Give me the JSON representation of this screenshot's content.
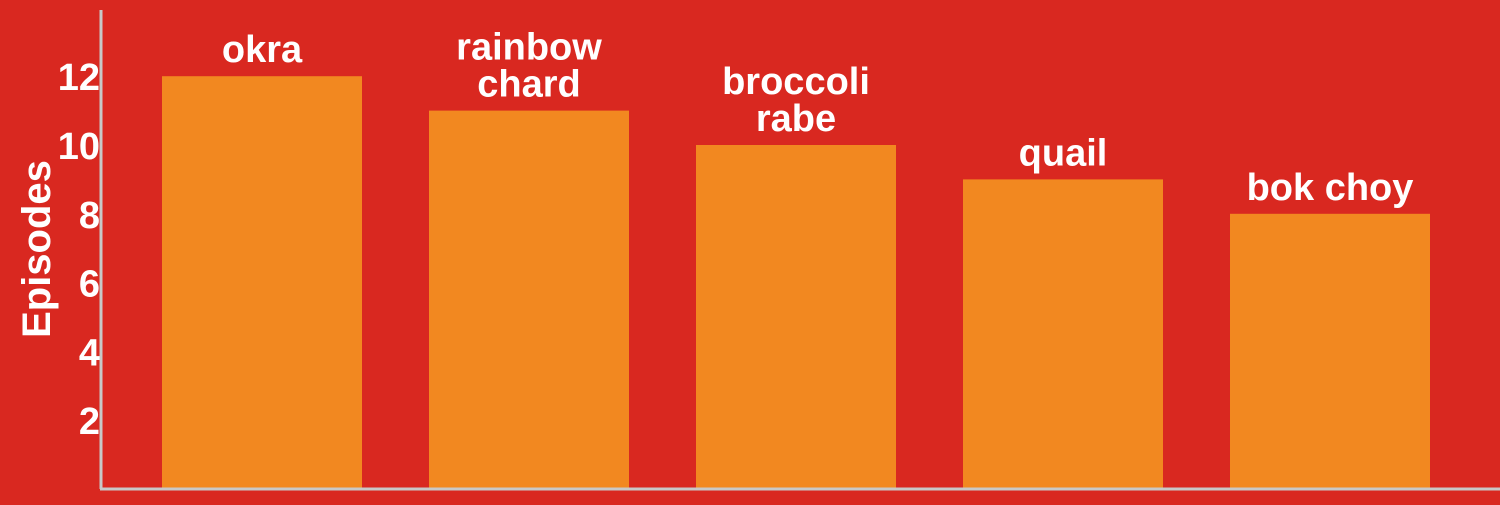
{
  "colors": {
    "background": "#d92820",
    "bar": "#f28820",
    "axis": "#c8c8c8",
    "text": "#ffffff"
  },
  "chart_data": {
    "type": "bar",
    "categories": [
      [
        "okra"
      ],
      [
        "rainbow",
        "chard"
      ],
      [
        "broccoli",
        "rabe"
      ],
      [
        "quail"
      ],
      [
        "bok choy"
      ]
    ],
    "values": [
      12,
      11,
      10,
      9,
      8
    ],
    "ylabel": "Episodes",
    "yticks": [
      2,
      4,
      6,
      8,
      10,
      12
    ],
    "ylim": [
      0,
      14
    ],
    "grid": false,
    "legend": "none"
  }
}
